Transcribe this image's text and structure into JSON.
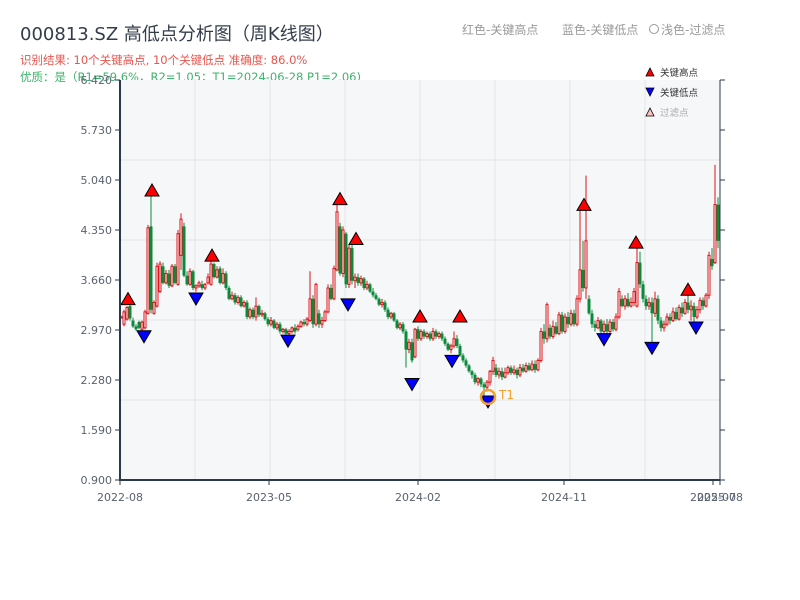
{
  "header": {
    "title": "000813.SZ 高低点分析图（周K线图）",
    "result_line": "识别结果: 10个关键高点, 10个关键低点   准确度: 86.0%",
    "quality_line": "优质：是（R1=59.6%，R2=1.05；T1=2024-06-28 P1=2.06)"
  },
  "top_legend": {
    "red": "红色-关键高点",
    "blue": "蓝色-关键低点",
    "light": "浅色-过滤点"
  },
  "colors": {
    "up": "#d9141b",
    "down": "#0b8a3a",
    "high_marker": "#ff0000",
    "low_marker": "#0000ff",
    "t1_circle": "#f0a030",
    "plot_bg": "#f6f7f9",
    "grid": "#e2e4e8",
    "axis": "#2b3a4a"
  },
  "chart_data": {
    "type": "candlestick",
    "title": "000813.SZ 高低点分析图（周K线图）",
    "xlabel": "",
    "ylabel": "",
    "ylim": [
      0.9,
      6.42
    ],
    "y_ticks": [
      "0.900",
      "1.590",
      "2.280",
      "2.970",
      "3.660",
      "4.350",
      "5.040",
      "5.730",
      "6.420"
    ],
    "x_ticks": [
      {
        "label": "2022-08",
        "x": 120
      },
      {
        "label": "2023-05",
        "x": 269
      },
      {
        "label": "2024-02",
        "x": 418
      },
      {
        "label": "2024-11",
        "x": 564
      },
      {
        "label": "2025-07",
        "x": 713
      },
      {
        "label": "2025-08",
        "x": 720
      }
    ],
    "legend": [
      {
        "label": "关键高点",
        "marker": "triangle-up",
        "color": "#ff0000"
      },
      {
        "label": "关键低点",
        "marker": "triangle-down",
        "color": "#0000ff"
      },
      {
        "label": "过滤点",
        "marker": "triangle-up-light",
        "color": "#ffc0c0"
      }
    ],
    "candles_note": "each candle: [x_px, open, close, high, low]",
    "candles": [
      [
        121,
        3.15,
        3.15,
        3.17,
        3.13
      ],
      [
        124,
        3.05,
        3.22,
        3.25,
        3.02
      ],
      [
        127,
        3.12,
        3.28,
        3.3,
        3.1
      ],
      [
        130,
        3.3,
        3.13,
        3.32,
        3.1
      ],
      [
        133,
        3.1,
        3.02,
        3.14,
        3.0
      ],
      [
        136,
        3.02,
        2.98,
        3.05,
        2.96
      ],
      [
        139,
        3.08,
        3.0,
        3.1,
        2.98
      ],
      [
        142,
        2.98,
        3.08,
        3.1,
        2.96
      ],
      [
        145,
        3.0,
        3.22,
        3.25,
        2.98
      ],
      [
        148,
        3.2,
        4.38,
        4.42,
        3.18
      ],
      [
        151,
        4.4,
        3.25,
        4.82,
        3.2
      ],
      [
        154,
        3.2,
        3.35,
        3.38,
        3.18
      ],
      [
        157,
        3.3,
        3.85,
        3.9,
        3.28
      ],
      [
        160,
        3.5,
        3.88,
        3.92,
        3.48
      ],
      [
        163,
        3.85,
        3.62,
        3.9,
        3.6
      ],
      [
        166,
        3.62,
        3.75,
        3.8,
        3.6
      ],
      [
        169,
        3.75,
        3.58,
        3.8,
        3.55
      ],
      [
        172,
        3.58,
        3.85,
        3.88,
        3.56
      ],
      [
        175,
        3.85,
        3.62,
        3.88,
        3.6
      ],
      [
        178,
        3.6,
        4.3,
        4.35,
        3.58
      ],
      [
        181,
        4.0,
        4.5,
        4.58,
        3.8
      ],
      [
        184,
        4.4,
        3.72,
        4.45,
        3.7
      ],
      [
        187,
        3.72,
        3.6,
        3.78,
        3.58
      ],
      [
        190,
        3.6,
        3.78,
        3.82,
        3.58
      ],
      [
        193,
        3.78,
        3.55,
        3.8,
        3.52
      ],
      [
        196,
        3.55,
        3.58,
        3.6,
        3.5
      ],
      [
        199,
        3.58,
        3.62,
        3.65,
        3.55
      ],
      [
        202,
        3.6,
        3.55,
        3.65,
        3.52
      ],
      [
        205,
        3.55,
        3.6,
        3.62,
        3.52
      ],
      [
        208,
        3.62,
        3.7,
        3.75,
        3.6
      ],
      [
        211,
        3.6,
        3.88,
        3.92,
        3.58
      ],
      [
        214,
        3.88,
        3.7,
        3.9,
        3.68
      ],
      [
        217,
        3.7,
        3.8,
        3.85,
        3.68
      ],
      [
        220,
        3.82,
        3.62,
        3.85,
        3.6
      ],
      [
        223,
        3.62,
        3.75,
        3.82,
        3.6
      ],
      [
        226,
        3.75,
        3.55,
        3.78,
        3.52
      ],
      [
        229,
        3.55,
        3.4,
        3.58,
        3.38
      ],
      [
        232,
        3.4,
        3.45,
        3.5,
        3.38
      ],
      [
        235,
        3.45,
        3.35,
        3.48,
        3.32
      ],
      [
        238,
        3.35,
        3.42,
        3.45,
        3.32
      ],
      [
        241,
        3.42,
        3.3,
        3.45,
        3.28
      ],
      [
        244,
        3.3,
        3.35,
        3.38,
        3.28
      ],
      [
        247,
        3.35,
        3.15,
        3.38,
        3.12
      ],
      [
        250,
        3.15,
        3.25,
        3.28,
        3.12
      ],
      [
        253,
        3.25,
        3.15,
        3.28,
        3.12
      ],
      [
        256,
        3.15,
        3.3,
        3.42,
        3.1
      ],
      [
        259,
        3.3,
        3.18,
        3.32,
        3.15
      ],
      [
        262,
        3.18,
        3.2,
        3.25,
        3.15
      ],
      [
        265,
        3.2,
        3.12,
        3.22,
        3.1
      ],
      [
        268,
        3.12,
        3.05,
        3.15,
        3.02
      ],
      [
        271,
        3.05,
        3.1,
        3.15,
        3.02
      ],
      [
        274,
        3.1,
        3.0,
        3.12,
        2.98
      ],
      [
        277,
        3.0,
        3.05,
        3.08,
        2.97
      ],
      [
        280,
        3.05,
        2.95,
        3.08,
        2.92
      ],
      [
        283,
        2.95,
        2.98,
        3.0,
        2.92
      ],
      [
        286,
        2.98,
        2.92,
        3.0,
        2.9
      ],
      [
        289,
        2.92,
        2.95,
        2.98,
        2.9
      ],
      [
        292,
        2.95,
        3.0,
        3.02,
        2.92
      ],
      [
        295,
        3.0,
        2.95,
        3.05,
        2.92
      ],
      [
        298,
        2.98,
        3.02,
        3.05,
        2.95
      ],
      [
        301,
        3.02,
        3.08,
        3.1,
        3.0
      ],
      [
        304,
        3.08,
        3.05,
        3.12,
        3.02
      ],
      [
        307,
        3.05,
        3.12,
        3.15,
        3.02
      ],
      [
        310,
        3.1,
        3.4,
        3.78,
        3.08
      ],
      [
        313,
        3.4,
        3.05,
        3.45,
        3.0
      ],
      [
        316,
        3.05,
        3.6,
        3.62,
        3.02
      ],
      [
        319,
        3.2,
        3.05,
        3.25,
        3.0
      ],
      [
        322,
        3.05,
        3.1,
        3.15,
        3.0
      ],
      [
        325,
        3.1,
        3.22,
        3.25,
        3.08
      ],
      [
        328,
        3.22,
        3.55,
        3.6,
        3.2
      ],
      [
        331,
        3.55,
        3.4,
        3.6,
        3.38
      ],
      [
        334,
        3.4,
        3.82,
        3.86,
        3.38
      ],
      [
        337,
        3.8,
        4.6,
        4.7,
        3.78
      ],
      [
        340,
        4.4,
        3.75,
        4.45,
        3.72
      ],
      [
        343,
        3.75,
        4.35,
        4.4,
        3.7
      ],
      [
        346,
        4.3,
        3.6,
        4.32,
        3.55
      ],
      [
        349,
        3.6,
        4.1,
        4.15,
        3.55
      ],
      [
        352,
        4.1,
        3.65,
        4.2,
        3.6
      ],
      [
        355,
        3.65,
        3.7,
        3.75,
        3.55
      ],
      [
        358,
        3.7,
        3.62,
        3.75,
        3.58
      ],
      [
        361,
        3.62,
        3.68,
        3.72,
        3.58
      ],
      [
        364,
        3.68,
        3.55,
        3.7,
        3.52
      ],
      [
        367,
        3.55,
        3.6,
        3.65,
        3.52
      ],
      [
        370,
        3.6,
        3.5,
        3.62,
        3.48
      ],
      [
        373,
        3.5,
        3.45,
        3.55,
        3.42
      ],
      [
        376,
        3.45,
        3.4,
        3.48,
        3.38
      ],
      [
        379,
        3.4,
        3.32,
        3.42,
        3.3
      ],
      [
        382,
        3.32,
        3.35,
        3.4,
        3.28
      ],
      [
        385,
        3.35,
        3.25,
        3.38,
        3.22
      ],
      [
        388,
        3.25,
        3.15,
        3.28,
        3.12
      ],
      [
        391,
        3.15,
        3.2,
        3.22,
        3.12
      ],
      [
        394,
        3.2,
        3.1,
        3.22,
        3.08
      ],
      [
        397,
        3.1,
        3.0,
        3.12,
        2.98
      ],
      [
        400,
        3.0,
        3.05,
        3.08,
        2.97
      ],
      [
        403,
        3.05,
        2.95,
        3.08,
        2.92
      ],
      [
        406,
        2.95,
        2.7,
        2.98,
        2.45
      ],
      [
        409,
        2.7,
        2.8,
        2.85,
        2.65
      ],
      [
        412,
        2.8,
        2.55,
        2.85,
        2.52
      ],
      [
        415,
        2.6,
        2.98,
        3.0,
        2.58
      ],
      [
        418,
        2.98,
        2.85,
        3.02,
        2.82
      ],
      [
        421,
        2.85,
        2.95,
        2.98,
        2.82
      ],
      [
        424,
        2.95,
        2.88,
        2.98,
        2.85
      ],
      [
        427,
        2.88,
        2.92,
        2.95,
        2.85
      ],
      [
        430,
        2.92,
        2.85,
        2.95,
        2.82
      ],
      [
        433,
        2.85,
        2.95,
        3.0,
        2.82
      ],
      [
        436,
        2.95,
        2.88,
        2.98,
        2.85
      ],
      [
        439,
        2.88,
        2.92,
        2.95,
        2.85
      ],
      [
        442,
        2.92,
        2.85,
        2.95,
        2.82
      ],
      [
        445,
        2.85,
        2.78,
        2.88,
        2.75
      ],
      [
        448,
        2.78,
        2.7,
        2.8,
        2.68
      ],
      [
        451,
        2.7,
        2.75,
        2.78,
        2.65
      ],
      [
        454,
        2.75,
        2.85,
        2.95,
        2.72
      ],
      [
        457,
        2.85,
        2.75,
        2.9,
        2.72
      ],
      [
        460,
        2.75,
        2.62,
        2.78,
        2.6
      ],
      [
        463,
        2.62,
        2.55,
        2.65,
        2.52
      ],
      [
        466,
        2.55,
        2.48,
        2.58,
        2.45
      ],
      [
        469,
        2.48,
        2.4,
        2.5,
        2.38
      ],
      [
        472,
        2.4,
        2.35,
        2.42,
        2.3
      ],
      [
        475,
        2.35,
        2.25,
        2.38,
        2.22
      ],
      [
        478,
        2.25,
        2.3,
        2.32,
        2.2
      ],
      [
        481,
        2.3,
        2.22,
        2.32,
        2.18
      ],
      [
        484,
        2.22,
        2.18,
        2.25,
        2.06
      ],
      [
        487,
        2.18,
        2.25,
        2.28,
        2.12
      ],
      [
        490,
        2.25,
        2.4,
        2.42,
        2.2
      ],
      [
        493,
        2.4,
        2.55,
        2.6,
        2.35
      ],
      [
        496,
        2.45,
        2.35,
        2.5,
        2.32
      ],
      [
        499,
        2.35,
        2.4,
        2.45,
        2.3
      ],
      [
        502,
        2.4,
        2.32,
        2.45,
        2.28
      ],
      [
        505,
        2.32,
        2.38,
        2.45,
        2.3
      ],
      [
        508,
        2.38,
        2.45,
        2.48,
        2.35
      ],
      [
        511,
        2.45,
        2.38,
        2.48,
        2.35
      ],
      [
        514,
        2.38,
        2.42,
        2.48,
        2.35
      ],
      [
        517,
        2.42,
        2.35,
        2.45,
        2.3
      ],
      [
        520,
        2.35,
        2.45,
        2.5,
        2.32
      ],
      [
        523,
        2.45,
        2.4,
        2.5,
        2.38
      ],
      [
        526,
        2.4,
        2.48,
        2.52,
        2.38
      ],
      [
        529,
        2.48,
        2.42,
        2.52,
        2.4
      ],
      [
        532,
        2.42,
        2.5,
        2.55,
        2.4
      ],
      [
        535,
        2.5,
        2.42,
        2.55,
        2.38
      ],
      [
        538,
        2.42,
        2.55,
        2.58,
        2.4
      ],
      [
        541,
        2.55,
        2.95,
        3.0,
        2.52
      ],
      [
        544,
        2.95,
        2.85,
        3.05,
        2.78
      ],
      [
        547,
        2.85,
        3.32,
        3.35,
        2.8
      ],
      [
        550,
        3.0,
        2.88,
        3.05,
        2.85
      ],
      [
        553,
        2.88,
        3.02,
        3.1,
        2.85
      ],
      [
        556,
        3.02,
        2.92,
        3.08,
        2.9
      ],
      [
        559,
        2.92,
        3.18,
        3.22,
        2.9
      ],
      [
        562,
        3.18,
        2.95,
        3.22,
        2.92
      ],
      [
        565,
        2.95,
        3.15,
        3.2,
        2.92
      ],
      [
        568,
        3.15,
        3.05,
        3.22,
        3.0
      ],
      [
        571,
        3.05,
        3.2,
        3.25,
        3.02
      ],
      [
        574,
        3.2,
        3.05,
        3.25,
        3.02
      ],
      [
        577,
        3.05,
        3.4,
        3.45,
        3.02
      ],
      [
        580,
        3.4,
        3.8,
        4.62,
        3.35
      ],
      [
        583,
        3.8,
        3.55,
        4.2,
        3.5
      ],
      [
        586,
        3.55,
        4.2,
        5.1,
        3.4
      ],
      [
        589,
        3.4,
        3.2,
        3.45,
        3.18
      ],
      [
        592,
        3.2,
        3.05,
        3.25,
        3.0
      ],
      [
        595,
        3.05,
        3.0,
        3.1,
        2.95
      ],
      [
        598,
        3.0,
        3.1,
        3.15,
        2.98
      ],
      [
        601,
        3.1,
        2.95,
        3.12,
        2.88
      ],
      [
        604,
        2.95,
        3.05,
        3.1,
        2.85
      ],
      [
        607,
        3.05,
        2.95,
        3.12,
        2.92
      ],
      [
        610,
        2.95,
        3.08,
        3.12,
        2.92
      ],
      [
        613,
        3.08,
        2.98,
        3.12,
        2.95
      ],
      [
        616,
        2.98,
        3.15,
        3.2,
        2.95
      ],
      [
        619,
        3.15,
        3.5,
        3.55,
        3.12
      ],
      [
        622,
        3.4,
        3.3,
        3.45,
        3.28
      ],
      [
        625,
        3.3,
        3.4,
        3.45,
        3.25
      ],
      [
        628,
        3.4,
        3.3,
        3.48,
        3.28
      ],
      [
        631,
        3.3,
        3.35,
        3.42,
        3.28
      ],
      [
        634,
        3.35,
        3.5,
        3.55,
        3.3
      ],
      [
        637,
        3.3,
        3.9,
        4.1,
        3.28
      ],
      [
        640,
        3.9,
        3.6,
        4.05,
        3.55
      ],
      [
        643,
        3.6,
        3.4,
        3.65,
        3.35
      ],
      [
        646,
        3.4,
        3.3,
        3.45,
        3.25
      ],
      [
        649,
        3.3,
        3.35,
        3.42,
        3.25
      ],
      [
        652,
        3.35,
        3.2,
        3.42,
        2.8
      ],
      [
        655,
        3.2,
        3.4,
        3.5,
        3.15
      ],
      [
        658,
        3.4,
        3.1,
        3.45,
        3.05
      ],
      [
        661,
        3.1,
        3.0,
        3.15,
        2.95
      ],
      [
        664,
        3.0,
        3.05,
        3.1,
        2.95
      ],
      [
        667,
        3.05,
        3.15,
        3.2,
        3.02
      ],
      [
        670,
        3.15,
        3.1,
        3.2,
        3.05
      ],
      [
        673,
        3.1,
        3.22,
        3.28,
        3.08
      ],
      [
        676,
        3.22,
        3.12,
        3.28,
        3.1
      ],
      [
        679,
        3.12,
        3.28,
        3.32,
        3.1
      ],
      [
        682,
        3.28,
        3.2,
        3.35,
        3.15
      ],
      [
        685,
        3.2,
        3.35,
        3.4,
        3.18
      ],
      [
        688,
        3.35,
        3.25,
        3.45,
        3.2
      ],
      [
        691,
        3.25,
        3.3,
        3.38,
        3.1
      ],
      [
        694,
        3.3,
        3.15,
        3.35,
        3.08
      ],
      [
        697,
        3.15,
        3.25,
        3.3,
        3.12
      ],
      [
        700,
        3.25,
        3.38,
        3.42,
        3.2
      ],
      [
        703,
        3.38,
        3.3,
        3.42,
        3.25
      ],
      [
        706,
        3.3,
        3.45,
        3.48,
        3.28
      ],
      [
        709,
        3.45,
        4.0,
        4.05,
        3.4
      ],
      [
        712,
        3.95,
        3.85,
        4.1,
        3.8
      ],
      [
        715,
        3.9,
        4.7,
        5.25,
        3.88
      ],
      [
        718,
        4.7,
        4.2,
        4.8,
        4.1
      ]
    ],
    "key_highs": [
      {
        "x": 128,
        "price": 3.32
      },
      {
        "x": 152,
        "price": 4.82
      },
      {
        "x": 212,
        "price": 3.92
      },
      {
        "x": 340,
        "price": 4.7
      },
      {
        "x": 356,
        "price": 4.15
      },
      {
        "x": 420,
        "price": 3.08
      },
      {
        "x": 460,
        "price": 3.08
      },
      {
        "x": 584,
        "price": 4.62
      },
      {
        "x": 636,
        "price": 4.1
      },
      {
        "x": 688,
        "price": 3.45
      }
    ],
    "key_lows": [
      {
        "x": 144,
        "price": 2.96
      },
      {
        "x": 196,
        "price": 3.48
      },
      {
        "x": 288,
        "price": 2.9
      },
      {
        "x": 348,
        "price": 3.4
      },
      {
        "x": 412,
        "price": 2.3
      },
      {
        "x": 452,
        "price": 2.62
      },
      {
        "x": 488,
        "price": 2.06
      },
      {
        "x": 604,
        "price": 2.92
      },
      {
        "x": 652,
        "price": 2.8
      },
      {
        "x": 696,
        "price": 3.08
      }
    ],
    "annotations": [
      {
        "label": "T1",
        "x": 488,
        "price": 2.06,
        "style": "circle"
      }
    ]
  }
}
